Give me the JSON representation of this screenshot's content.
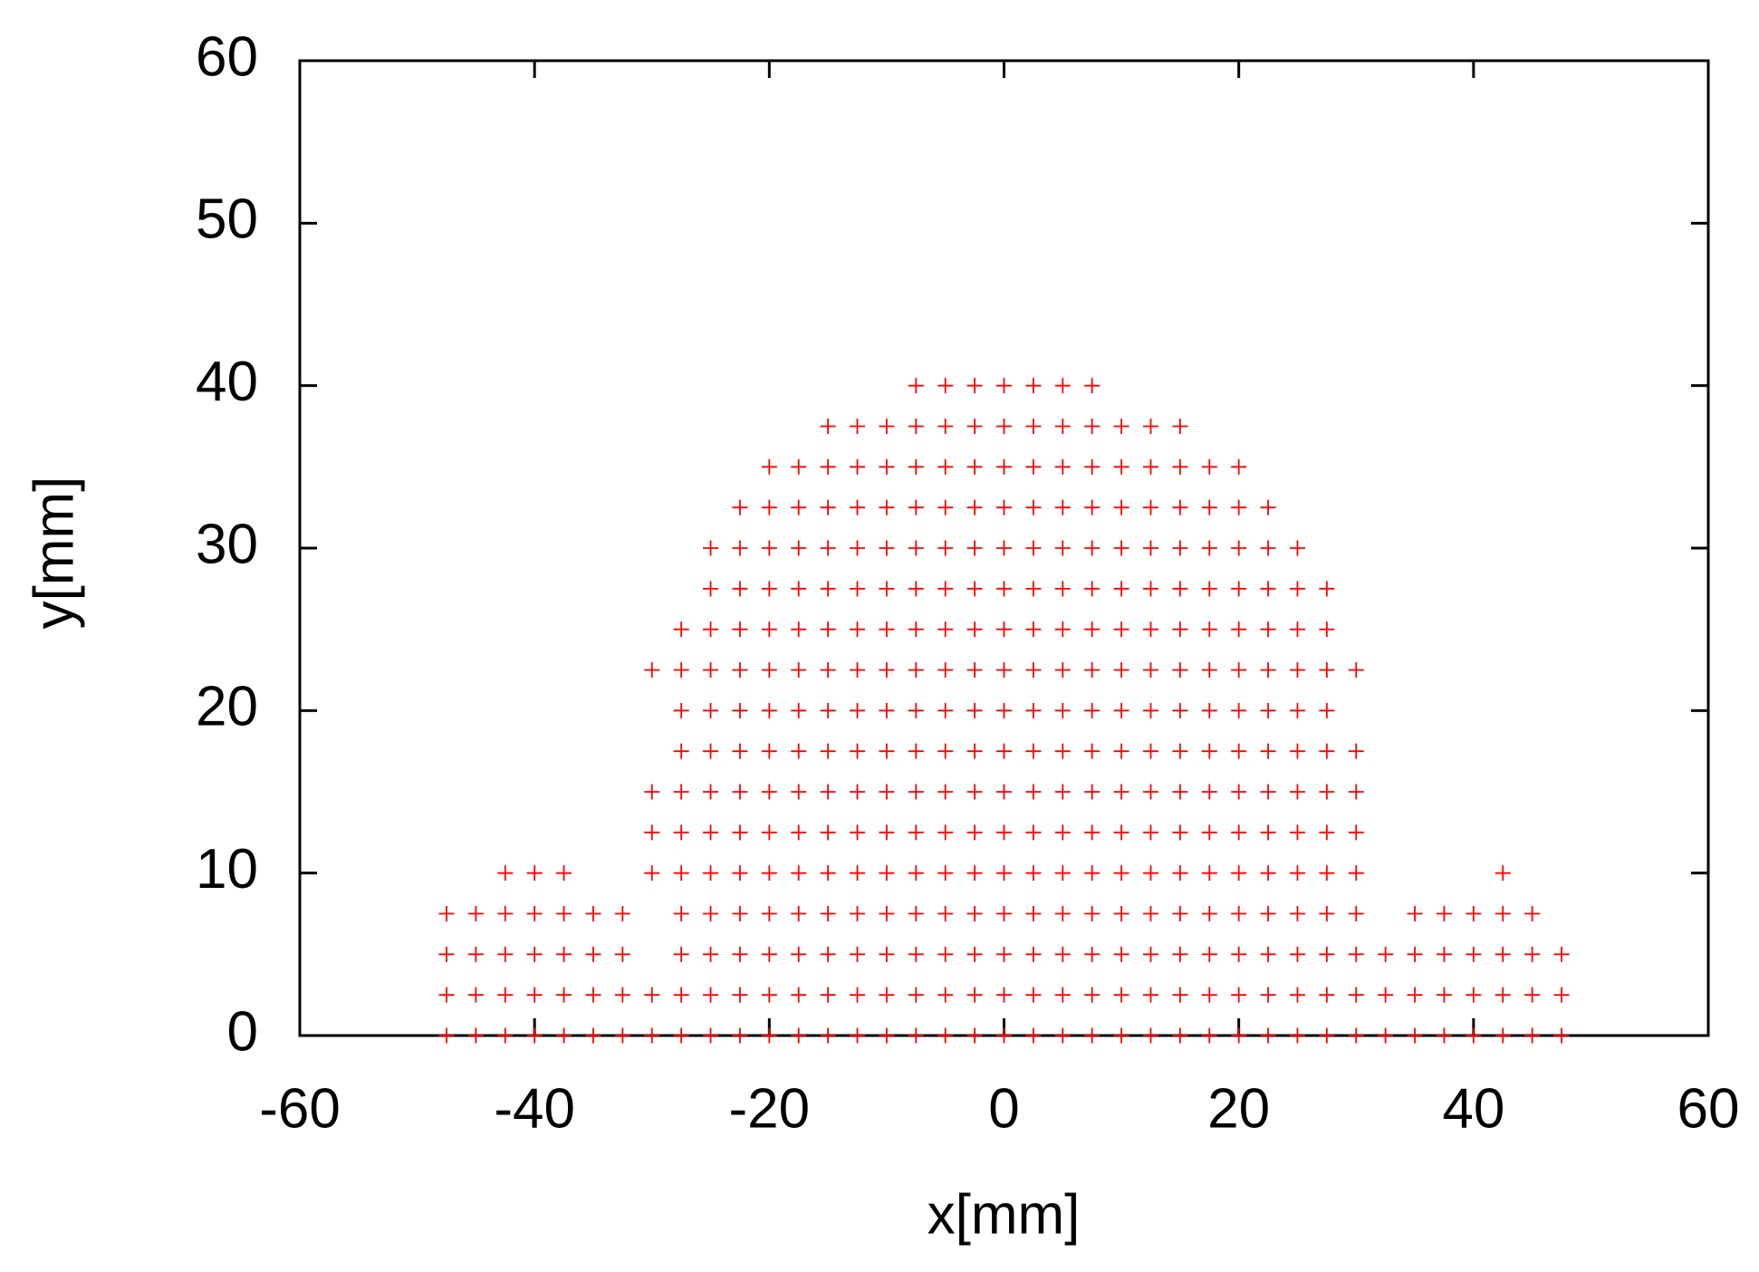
{
  "chart_data": {
    "type": "scatter",
    "xlabel": "x[mm]",
    "ylabel": "y[mm]",
    "xlim": [
      -60,
      60
    ],
    "ylim": [
      0,
      60
    ],
    "xticks": [
      -60,
      -40,
      -20,
      0,
      20,
      40,
      60
    ],
    "yticks": [
      0,
      10,
      20,
      30,
      40,
      50,
      60
    ],
    "series": [
      {
        "color": "#ff0000",
        "x": [
          -47.5,
          -45,
          -42.5,
          -40,
          -37.5,
          -35,
          -32.5,
          -30,
          -27.5,
          -25,
          -22.5,
          -20,
          -17.5,
          -15,
          -12.5,
          -10,
          -7.5,
          -5,
          -2.5,
          0,
          2.5,
          5,
          7.5,
          10,
          12.5,
          15,
          17.5,
          20,
          22.5,
          25,
          27.5,
          30,
          32.5,
          35,
          37.5,
          40,
          42.5,
          45,
          47.5
        ],
        "y": [
          0,
          0,
          0,
          0,
          0,
          0,
          0,
          0,
          0,
          0,
          0,
          0,
          0,
          0,
          0,
          0,
          0,
          0,
          0,
          0,
          0,
          0,
          0,
          0,
          0,
          0,
          0,
          0,
          0,
          0,
          0,
          0,
          0,
          0,
          0,
          0,
          0,
          0,
          0
        ]
      },
      {
        "color": "#ff0000",
        "x": [
          -47.5,
          -45,
          -42.5,
          -40,
          -37.5,
          -35,
          -32.5,
          -30,
          -27.5,
          -25,
          -22.5,
          -20,
          -17.5,
          -15,
          -12.5,
          -10,
          -7.5,
          -5,
          -2.5,
          0,
          2.5,
          5,
          7.5,
          10,
          12.5,
          15,
          17.5,
          20,
          22.5,
          25,
          27.5,
          30,
          32.5,
          35,
          37.5,
          40,
          42.5,
          45,
          47.5
        ],
        "y": [
          2.5,
          2.5,
          2.5,
          2.5,
          2.5,
          2.5,
          2.5,
          2.5,
          2.5,
          2.5,
          2.5,
          2.5,
          2.5,
          2.5,
          2.5,
          2.5,
          2.5,
          2.5,
          2.5,
          2.5,
          2.5,
          2.5,
          2.5,
          2.5,
          2.5,
          2.5,
          2.5,
          2.5,
          2.5,
          2.5,
          2.5,
          2.5,
          2.5,
          2.5,
          2.5,
          2.5,
          2.5,
          2.5,
          2.5
        ]
      },
      {
        "color": "#ff0000",
        "x": [
          -47.5,
          -45,
          -42.5,
          -40,
          -37.5,
          -35,
          -32.5,
          -27.5,
          -25,
          -22.5,
          -20,
          -17.5,
          -15,
          -12.5,
          -10,
          -7.5,
          -5,
          -2.5,
          0,
          2.5,
          5,
          7.5,
          10,
          12.5,
          15,
          17.5,
          20,
          22.5,
          25,
          27.5,
          30,
          32.5,
          35,
          37.5,
          40,
          42.5,
          45,
          47.5
        ],
        "y": [
          5,
          5,
          5,
          5,
          5,
          5,
          5,
          5,
          5,
          5,
          5,
          5,
          5,
          5,
          5,
          5,
          5,
          5,
          5,
          5,
          5,
          5,
          5,
          5,
          5,
          5,
          5,
          5,
          5,
          5,
          5,
          5,
          5,
          5,
          5,
          5,
          5,
          5
        ]
      },
      {
        "color": "#ff0000",
        "x": [
          -47.5,
          -45,
          -42.5,
          -40,
          -37.5,
          -35,
          -32.5,
          -27.5,
          -25,
          -22.5,
          -20,
          -17.5,
          -15,
          -12.5,
          -10,
          -7.5,
          -5,
          -2.5,
          0,
          2.5,
          5,
          7.5,
          10,
          12.5,
          15,
          17.5,
          20,
          22.5,
          25,
          27.5,
          30,
          35,
          37.5,
          40,
          42.5,
          45
        ],
        "y": [
          7.5,
          7.5,
          7.5,
          7.5,
          7.5,
          7.5,
          7.5,
          7.5,
          7.5,
          7.5,
          7.5,
          7.5,
          7.5,
          7.5,
          7.5,
          7.5,
          7.5,
          7.5,
          7.5,
          7.5,
          7.5,
          7.5,
          7.5,
          7.5,
          7.5,
          7.5,
          7.5,
          7.5,
          7.5,
          7.5,
          7.5,
          7.5,
          7.5,
          7.5,
          7.5,
          7.5
        ]
      },
      {
        "color": "#ff0000",
        "x": [
          -42.5,
          -40,
          -37.5,
          -30,
          -27.5,
          -25,
          -22.5,
          -20,
          -17.5,
          -15,
          -12.5,
          -10,
          -7.5,
          -5,
          -2.5,
          0,
          2.5,
          5,
          7.5,
          10,
          12.5,
          15,
          17.5,
          20,
          22.5,
          25,
          27.5,
          30,
          42.5
        ],
        "y": [
          10,
          10,
          10,
          10,
          10,
          10,
          10,
          10,
          10,
          10,
          10,
          10,
          10,
          10,
          10,
          10,
          10,
          10,
          10,
          10,
          10,
          10,
          10,
          10,
          10,
          10,
          10,
          10,
          10
        ]
      },
      {
        "color": "#ff0000",
        "x": [
          -30,
          -27.5,
          -25,
          -22.5,
          -20,
          -17.5,
          -15,
          -12.5,
          -10,
          -7.5,
          -5,
          -2.5,
          0,
          2.5,
          5,
          7.5,
          10,
          12.5,
          15,
          17.5,
          20,
          22.5,
          25,
          27.5,
          30
        ],
        "y": [
          12.5,
          12.5,
          12.5,
          12.5,
          12.5,
          12.5,
          12.5,
          12.5,
          12.5,
          12.5,
          12.5,
          12.5,
          12.5,
          12.5,
          12.5,
          12.5,
          12.5,
          12.5,
          12.5,
          12.5,
          12.5,
          12.5,
          12.5,
          12.5,
          12.5
        ]
      },
      {
        "color": "#ff0000",
        "x": [
          -30,
          -27.5,
          -25,
          -22.5,
          -20,
          -17.5,
          -15,
          -12.5,
          -10,
          -7.5,
          -5,
          -2.5,
          0,
          2.5,
          5,
          7.5,
          10,
          12.5,
          15,
          17.5,
          20,
          22.5,
          25,
          27.5,
          30
        ],
        "y": [
          15,
          15,
          15,
          15,
          15,
          15,
          15,
          15,
          15,
          15,
          15,
          15,
          15,
          15,
          15,
          15,
          15,
          15,
          15,
          15,
          15,
          15,
          15,
          15,
          15
        ]
      },
      {
        "color": "#ff0000",
        "x": [
          -27.5,
          -25,
          -22.5,
          -20,
          -17.5,
          -15,
          -12.5,
          -10,
          -7.5,
          -5,
          -2.5,
          0,
          2.5,
          5,
          7.5,
          10,
          12.5,
          15,
          17.5,
          20,
          22.5,
          25,
          27.5,
          30
        ],
        "y": [
          17.5,
          17.5,
          17.5,
          17.5,
          17.5,
          17.5,
          17.5,
          17.5,
          17.5,
          17.5,
          17.5,
          17.5,
          17.5,
          17.5,
          17.5,
          17.5,
          17.5,
          17.5,
          17.5,
          17.5,
          17.5,
          17.5,
          17.5,
          17.5
        ]
      },
      {
        "color": "#ff0000",
        "x": [
          -27.5,
          -25,
          -22.5,
          -20,
          -17.5,
          -15,
          -12.5,
          -10,
          -7.5,
          -5,
          -2.5,
          0,
          2.5,
          5,
          7.5,
          10,
          12.5,
          15,
          17.5,
          20,
          22.5,
          25,
          27.5
        ],
        "y": [
          20,
          20,
          20,
          20,
          20,
          20,
          20,
          20,
          20,
          20,
          20,
          20,
          20,
          20,
          20,
          20,
          20,
          20,
          20,
          20,
          20,
          20,
          20
        ]
      },
      {
        "color": "#ff0000",
        "x": [
          -30,
          -27.5,
          -25,
          -22.5,
          -20,
          -17.5,
          -15,
          -12.5,
          -10,
          -7.5,
          -5,
          -2.5,
          0,
          2.5,
          5,
          7.5,
          10,
          12.5,
          15,
          17.5,
          20,
          22.5,
          25,
          27.5,
          30
        ],
        "y": [
          22.5,
          22.5,
          22.5,
          22.5,
          22.5,
          22.5,
          22.5,
          22.5,
          22.5,
          22.5,
          22.5,
          22.5,
          22.5,
          22.5,
          22.5,
          22.5,
          22.5,
          22.5,
          22.5,
          22.5,
          22.5,
          22.5,
          22.5,
          22.5,
          22.5
        ]
      },
      {
        "color": "#ff0000",
        "x": [
          -27.5,
          -25,
          -22.5,
          -20,
          -17.5,
          -15,
          -12.5,
          -10,
          -7.5,
          -5,
          -2.5,
          0,
          2.5,
          5,
          7.5,
          10,
          12.5,
          15,
          17.5,
          20,
          22.5,
          25,
          27.5
        ],
        "y": [
          25,
          25,
          25,
          25,
          25,
          25,
          25,
          25,
          25,
          25,
          25,
          25,
          25,
          25,
          25,
          25,
          25,
          25,
          25,
          25,
          25,
          25,
          25
        ]
      },
      {
        "color": "#ff0000",
        "x": [
          -25,
          -22.5,
          -20,
          -17.5,
          -15,
          -12.5,
          -10,
          -7.5,
          -5,
          -2.5,
          0,
          2.5,
          5,
          7.5,
          10,
          12.5,
          15,
          17.5,
          20,
          22.5,
          25,
          27.5
        ],
        "y": [
          27.5,
          27.5,
          27.5,
          27.5,
          27.5,
          27.5,
          27.5,
          27.5,
          27.5,
          27.5,
          27.5,
          27.5,
          27.5,
          27.5,
          27.5,
          27.5,
          27.5,
          27.5,
          27.5,
          27.5,
          27.5,
          27.5
        ]
      },
      {
        "color": "#ff0000",
        "x": [
          -25,
          -22.5,
          -20,
          -17.5,
          -15,
          -12.5,
          -10,
          -7.5,
          -5,
          -2.5,
          0,
          2.5,
          5,
          7.5,
          10,
          12.5,
          15,
          17.5,
          20,
          22.5,
          25
        ],
        "y": [
          30,
          30,
          30,
          30,
          30,
          30,
          30,
          30,
          30,
          30,
          30,
          30,
          30,
          30,
          30,
          30,
          30,
          30,
          30,
          30,
          30
        ]
      },
      {
        "color": "#ff0000",
        "x": [
          -22.5,
          -20,
          -17.5,
          -15,
          -12.5,
          -10,
          -7.5,
          -5,
          -2.5,
          0,
          2.5,
          5,
          7.5,
          10,
          12.5,
          15,
          17.5,
          20,
          22.5
        ],
        "y": [
          32.5,
          32.5,
          32.5,
          32.5,
          32.5,
          32.5,
          32.5,
          32.5,
          32.5,
          32.5,
          32.5,
          32.5,
          32.5,
          32.5,
          32.5,
          32.5,
          32.5,
          32.5,
          32.5
        ]
      },
      {
        "color": "#ff0000",
        "x": [
          -20,
          -17.5,
          -15,
          -12.5,
          -10,
          -7.5,
          -5,
          -2.5,
          0,
          2.5,
          5,
          7.5,
          10,
          12.5,
          15,
          17.5,
          20
        ],
        "y": [
          35,
          35,
          35,
          35,
          35,
          35,
          35,
          35,
          35,
          35,
          35,
          35,
          35,
          35,
          35,
          35,
          35
        ]
      },
      {
        "color": "#ff0000",
        "x": [
          -15,
          -12.5,
          -10,
          -7.5,
          -5,
          -2.5,
          0,
          2.5,
          5,
          7.5,
          10,
          12.5,
          15
        ],
        "y": [
          37.5,
          37.5,
          37.5,
          37.5,
          37.5,
          37.5,
          37.5,
          37.5,
          37.5,
          37.5,
          37.5,
          37.5,
          37.5
        ]
      },
      {
        "color": "#ff0000",
        "x": [
          -7.5,
          -5,
          -2.5,
          0,
          2.5,
          5,
          7.5
        ],
        "y": [
          40,
          40,
          40,
          40,
          40,
          40,
          40
        ]
      }
    ]
  }
}
